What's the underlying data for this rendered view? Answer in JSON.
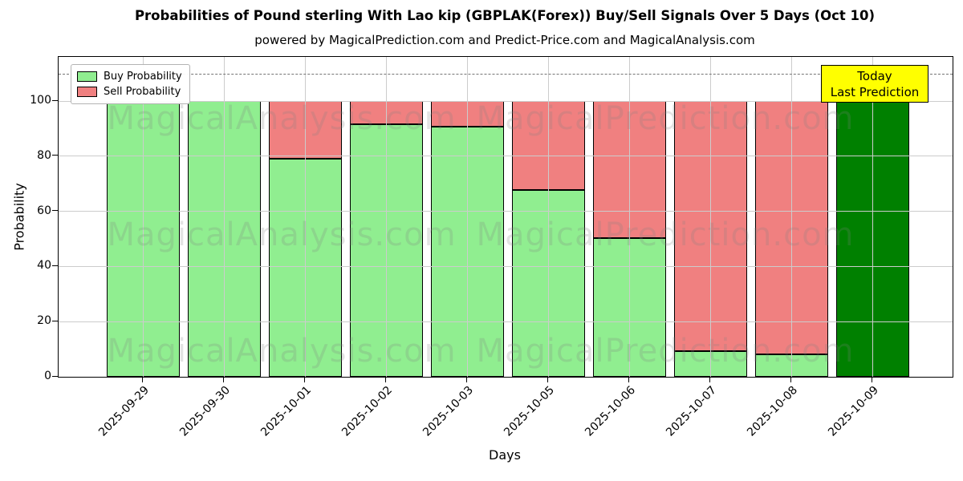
{
  "chart_data": {
    "type": "bar",
    "stacked": true,
    "title": "Probabilities of Pound sterling With Lao kip (GBPLAK(Forex)) Buy/Sell Signals Over 5 Days (Oct 10)",
    "subtitle": "powered by MagicalPrediction.com and Predict-Price.com and MagicalAnalysis.com",
    "xlabel": "Days",
    "ylabel": "Probability",
    "categories": [
      "2025-09-29",
      "2025-09-30",
      "2025-10-01",
      "2025-10-02",
      "2025-10-03",
      "2025-10-05",
      "2025-10-06",
      "2025-10-07",
      "2025-10-08",
      "2025-10-09"
    ],
    "series": [
      {
        "name": "Buy Probability",
        "color": "#90EE90",
        "values": [
          100,
          100,
          79.0,
          91.7,
          90.8,
          67.6,
          50.3,
          9.2,
          8.2,
          100
        ]
      },
      {
        "name": "Sell Probability",
        "color": "#F08080",
        "values": [
          0,
          0,
          21.0,
          8.3,
          9.2,
          32.4,
          49.7,
          90.8,
          91.8,
          0
        ]
      }
    ],
    "today_index": 9,
    "today_color": "#008000",
    "yticks": [
      0,
      20,
      40,
      60,
      80,
      100
    ],
    "ylim": [
      0,
      116
    ],
    "dashed_line_y": 110,
    "grid": true,
    "legend_position": "upper-left",
    "annotation": {
      "line1": "Today",
      "line2": "Last Prediction",
      "bg_color": "#FFFF00"
    },
    "watermarks": [
      "MagicalAnalysis.com",
      "MagicalPrediction.com"
    ],
    "edge_color": "#000000"
  }
}
